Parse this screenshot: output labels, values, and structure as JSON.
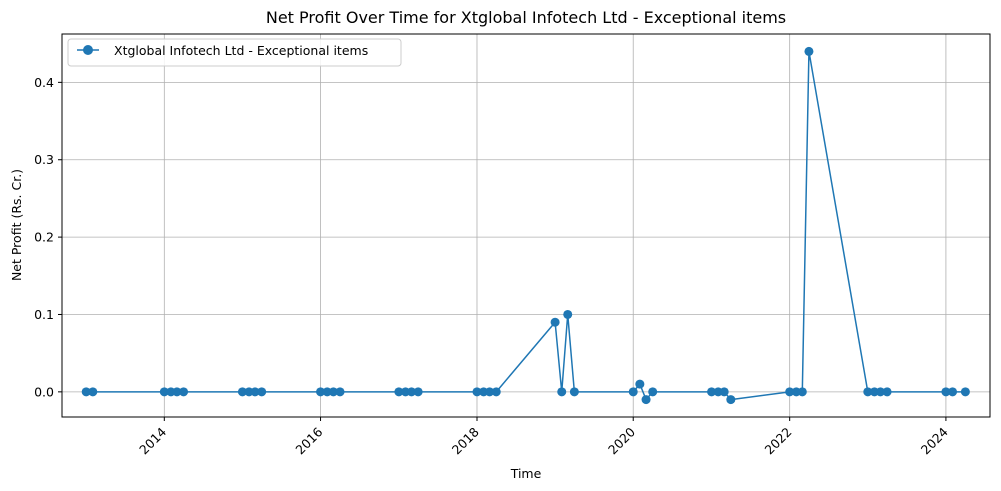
{
  "chart_data": {
    "type": "line",
    "title": "Net Profit Over Time for Xtglobal Infotech Ltd - Exceptional items",
    "xlabel": "Time",
    "ylabel": "Net Profit (Rs. Cr.)",
    "xlim": [
      "2012-09-10",
      "2024-07-25"
    ],
    "ylim": [
      -0.0325,
      0.4625
    ],
    "x_ticks": [
      "2014",
      "2016",
      "2018",
      "2020",
      "2022",
      "2024"
    ],
    "y_ticks": [
      "0.0",
      "0.1",
      "0.2",
      "0.3",
      "0.4"
    ],
    "grid": true,
    "legend_position": "top-left",
    "series": [
      {
        "name": "Xtglobal Infotech Ltd - Exceptional items",
        "color": "#1f77b4",
        "x": [
          "2013-01-01",
          "2013-02-01",
          "2014-01-01",
          "2014-02-01",
          "2014-03-01",
          "2014-04-01",
          "2015-01-01",
          "2015-02-01",
          "2015-03-01",
          "2015-04-01",
          "2016-01-01",
          "2016-02-01",
          "2016-03-01",
          "2016-04-01",
          "2017-01-01",
          "2017-02-01",
          "2017-03-01",
          "2017-04-01",
          "2018-01-01",
          "2018-02-01",
          "2018-03-01",
          "2018-04-01",
          "2019-01-01",
          "2019-02-01",
          "2019-03-01",
          "2019-04-01",
          "2020-01-01",
          "2020-02-01",
          "2020-03-01",
          "2020-04-01",
          "2021-01-01",
          "2021-02-01",
          "2021-03-01",
          "2021-04-01",
          "2022-01-01",
          "2022-02-01",
          "2022-03-01",
          "2022-04-01",
          "2023-01-01",
          "2023-02-01",
          "2023-03-01",
          "2023-04-01",
          "2024-01-01",
          "2024-02-01",
          "2024-04-01"
        ],
        "y": [
          0,
          0,
          0,
          0,
          0,
          0,
          0,
          0,
          0,
          0,
          0,
          0,
          0,
          0,
          0,
          0,
          0,
          0,
          0,
          0,
          0,
          0,
          0.09,
          0,
          0.1,
          0,
          0,
          0.01,
          -0.01,
          0,
          0,
          0,
          0,
          -0.01,
          0,
          0,
          0,
          0.44,
          0,
          0,
          0,
          0,
          0,
          0,
          0
        ]
      }
    ]
  }
}
